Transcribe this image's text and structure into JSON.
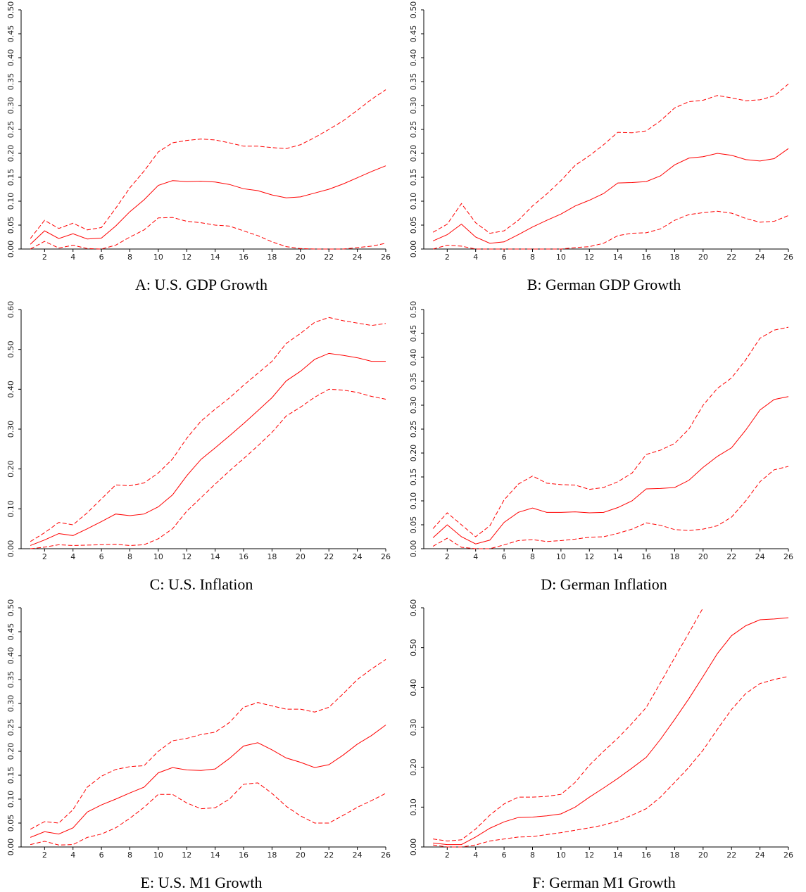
{
  "chart_data": [
    {
      "type": "line",
      "title": "A: U.S. GDP Growth",
      "x": [
        1,
        2,
        3,
        4,
        5,
        6,
        7,
        8,
        9,
        10,
        11,
        12,
        13,
        14,
        15,
        16,
        17,
        18,
        19,
        20,
        21,
        22,
        23,
        24,
        25,
        26
      ],
      "xlim": [
        0.35,
        26
      ],
      "xticks": [
        2,
        4,
        6,
        8,
        10,
        12,
        14,
        16,
        18,
        20,
        22,
        24,
        26
      ],
      "ylim": [
        0,
        0.5
      ],
      "yticks": [
        {
          "value": 0,
          "label": "0.00"
        },
        {
          "value": 0.05,
          "label": "0.05"
        },
        {
          "value": 0.1,
          "label": "0.10"
        },
        {
          "value": 0.15,
          "label": "0.15"
        },
        {
          "value": 0.2,
          "label": "0.20"
        },
        {
          "value": 0.25,
          "label": "0.25"
        },
        {
          "value": 0.3,
          "label": "0.30"
        },
        {
          "value": 0.35,
          "label": "0.35"
        },
        {
          "value": 0.4,
          "label": "0.40"
        },
        {
          "value": 0.45,
          "label": "0.45"
        },
        {
          "value": 0.5,
          "label": "0.50"
        }
      ],
      "series": [
        {
          "color": "#ff0000",
          "dashed": false,
          "values": [
            0.01,
            0.038,
            0.022,
            0.032,
            0.021,
            0.023,
            0.048,
            0.078,
            0.103,
            0.133,
            0.143,
            0.141,
            0.142,
            0.14,
            0.135,
            0.126,
            0.122,
            0.113,
            0.107,
            0.109,
            0.117,
            0.125,
            0.136,
            0.149,
            0.162,
            0.174
          ]
        },
        {
          "color": "#ff0000",
          "dashed": true,
          "values": [
            0.022,
            0.06,
            0.043,
            0.054,
            0.04,
            0.045,
            0.085,
            0.128,
            0.163,
            0.203,
            0.222,
            0.227,
            0.23,
            0.228,
            0.222,
            0.215,
            0.215,
            0.212,
            0.21,
            0.218,
            0.233,
            0.25,
            0.268,
            0.29,
            0.313,
            0.333
          ]
        },
        {
          "color": "#ff0000",
          "dashed": true,
          "values": [
            0,
            0.016,
            0.002,
            0.008,
            0.001,
            0,
            0.008,
            0.025,
            0.04,
            0.065,
            0.066,
            0.058,
            0.055,
            0.05,
            0.048,
            0.038,
            0.028,
            0.015,
            0.005,
            0.001,
            0,
            0,
            0,
            0.003,
            0.006,
            0.012
          ]
        }
      ]
    },
    {
      "type": "line",
      "title": "B: German GDP Growth",
      "x": [
        1,
        2,
        3,
        4,
        5,
        6,
        7,
        8,
        9,
        10,
        11,
        12,
        13,
        14,
        15,
        16,
        17,
        18,
        19,
        20,
        21,
        22,
        23,
        24,
        25,
        26
      ],
      "xlim": [
        0.35,
        26
      ],
      "xticks": [
        2,
        4,
        6,
        8,
        10,
        12,
        14,
        16,
        18,
        20,
        22,
        24,
        26
      ],
      "ylim": [
        0,
        0.5
      ],
      "yticks": [
        {
          "value": 0,
          "label": "0.00"
        },
        {
          "value": 0.05,
          "label": "0.05"
        },
        {
          "value": 0.1,
          "label": "0.10"
        },
        {
          "value": 0.15,
          "label": "0.15"
        },
        {
          "value": 0.2,
          "label": "0.20"
        },
        {
          "value": 0.25,
          "label": "0.25"
        },
        {
          "value": 0.3,
          "label": "0.30"
        },
        {
          "value": 0.35,
          "label": "0.35"
        },
        {
          "value": 0.4,
          "label": "0.40"
        },
        {
          "value": 0.45,
          "label": "0.45"
        },
        {
          "value": 0.5,
          "label": "0.50"
        }
      ],
      "series": [
        {
          "color": "#ff0000",
          "dashed": false,
          "values": [
            0.017,
            0.03,
            0.052,
            0.025,
            0.012,
            0.015,
            0.03,
            0.046,
            0.06,
            0.073,
            0.09,
            0.102,
            0.116,
            0.138,
            0.139,
            0.141,
            0.153,
            0.176,
            0.19,
            0.193,
            0.2,
            0.196,
            0.187,
            0.184,
            0.189,
            0.21
          ]
        },
        {
          "color": "#ff0000",
          "dashed": true,
          "values": [
            0.035,
            0.052,
            0.095,
            0.055,
            0.033,
            0.038,
            0.06,
            0.09,
            0.115,
            0.143,
            0.175,
            0.195,
            0.218,
            0.244,
            0.243,
            0.247,
            0.268,
            0.295,
            0.308,
            0.311,
            0.321,
            0.316,
            0.31,
            0.312,
            0.32,
            0.345
          ]
        },
        {
          "color": "#ff0000",
          "dashed": true,
          "values": [
            0,
            0.008,
            0.006,
            0,
            0,
            0,
            0,
            0,
            0,
            0,
            0.003,
            0.005,
            0.012,
            0.028,
            0.033,
            0.034,
            0.042,
            0.06,
            0.072,
            0.076,
            0.079,
            0.075,
            0.064,
            0.056,
            0.058,
            0.07
          ]
        }
      ]
    },
    {
      "type": "line",
      "title": "C: U.S. Inflation",
      "x": [
        1,
        2,
        3,
        4,
        5,
        6,
        7,
        8,
        9,
        10,
        11,
        12,
        13,
        14,
        15,
        16,
        17,
        18,
        19,
        20,
        21,
        22,
        23,
        24,
        25,
        26
      ],
      "xlim": [
        0.35,
        26
      ],
      "xticks": [
        2,
        4,
        6,
        8,
        10,
        12,
        14,
        16,
        18,
        20,
        22,
        24,
        26
      ],
      "ylim": [
        0,
        0.6
      ],
      "yticks": [
        {
          "value": 0,
          "label": "0.00"
        },
        {
          "value": 0.1,
          "label": "0.10"
        },
        {
          "value": 0.2,
          "label": "0.20"
        },
        {
          "value": 0.3,
          "label": "0.30"
        },
        {
          "value": 0.4,
          "label": "0.40"
        },
        {
          "value": 0.5,
          "label": "0.50"
        },
        {
          "value": 0.6,
          "label": "0.60"
        }
      ],
      "series": [
        {
          "color": "#ff0000",
          "dashed": false,
          "values": [
            0.008,
            0.022,
            0.038,
            0.033,
            0.05,
            0.068,
            0.087,
            0.083,
            0.087,
            0.105,
            0.135,
            0.183,
            0.224,
            0.253,
            0.283,
            0.314,
            0.346,
            0.379,
            0.421,
            0.445,
            0.475,
            0.49,
            0.485,
            0.479,
            0.47,
            0.47
          ]
        },
        {
          "color": "#ff0000",
          "dashed": true,
          "values": [
            0.018,
            0.04,
            0.066,
            0.06,
            0.09,
            0.125,
            0.16,
            0.158,
            0.165,
            0.19,
            0.225,
            0.277,
            0.32,
            0.35,
            0.378,
            0.41,
            0.44,
            0.47,
            0.515,
            0.54,
            0.568,
            0.58,
            0.572,
            0.566,
            0.56,
            0.565
          ]
        },
        {
          "color": "#ff0000",
          "dashed": true,
          "values": [
            0,
            0.004,
            0.01,
            0.008,
            0.009,
            0.01,
            0.011,
            0.008,
            0.01,
            0.025,
            0.05,
            0.094,
            0.128,
            0.162,
            0.195,
            0.226,
            0.258,
            0.292,
            0.333,
            0.355,
            0.38,
            0.4,
            0.398,
            0.392,
            0.382,
            0.375
          ]
        }
      ]
    },
    {
      "type": "line",
      "title": "D: German Inflation",
      "x": [
        1,
        2,
        3,
        4,
        5,
        6,
        7,
        8,
        9,
        10,
        11,
        12,
        13,
        14,
        15,
        16,
        17,
        18,
        19,
        20,
        21,
        22,
        23,
        24,
        25,
        26
      ],
      "xlim": [
        0.35,
        26
      ],
      "xticks": [
        2,
        4,
        6,
        8,
        10,
        12,
        14,
        16,
        18,
        20,
        22,
        24,
        26
      ],
      "ylim": [
        0,
        0.5
      ],
      "yticks": [
        {
          "value": 0,
          "label": "0.00"
        },
        {
          "value": 0.05,
          "label": "0.05"
        },
        {
          "value": 0.1,
          "label": "0.10"
        },
        {
          "value": 0.15,
          "label": "0.15"
        },
        {
          "value": 0.2,
          "label": "0.20"
        },
        {
          "value": 0.25,
          "label": "0.25"
        },
        {
          "value": 0.3,
          "label": "0.30"
        },
        {
          "value": 0.35,
          "label": "0.35"
        },
        {
          "value": 0.4,
          "label": "0.40"
        },
        {
          "value": 0.45,
          "label": "0.45"
        },
        {
          "value": 0.5,
          "label": "0.50"
        }
      ],
      "series": [
        {
          "color": "#ff0000",
          "dashed": false,
          "values": [
            0.023,
            0.05,
            0.025,
            0.01,
            0.018,
            0.055,
            0.076,
            0.085,
            0.076,
            0.076,
            0.077,
            0.075,
            0.076,
            0.086,
            0.1,
            0.125,
            0.126,
            0.128,
            0.143,
            0.17,
            0.193,
            0.211,
            0.248,
            0.29,
            0.312,
            0.318
          ]
        },
        {
          "color": "#ff0000",
          "dashed": true,
          "values": [
            0.042,
            0.075,
            0.05,
            0.025,
            0.048,
            0.102,
            0.135,
            0.152,
            0.137,
            0.134,
            0.133,
            0.124,
            0.128,
            0.14,
            0.158,
            0.197,
            0.206,
            0.22,
            0.25,
            0.3,
            0.335,
            0.357,
            0.395,
            0.44,
            0.457,
            0.463
          ]
        },
        {
          "color": "#ff0000",
          "dashed": true,
          "values": [
            0.005,
            0.022,
            0.003,
            0,
            0,
            0.008,
            0.017,
            0.019,
            0.015,
            0.017,
            0.02,
            0.024,
            0.025,
            0.032,
            0.041,
            0.054,
            0.049,
            0.04,
            0.038,
            0.041,
            0.048,
            0.066,
            0.1,
            0.14,
            0.165,
            0.172
          ]
        }
      ]
    },
    {
      "type": "line",
      "title": "E: U.S. M1 Growth",
      "x": [
        1,
        2,
        3,
        4,
        5,
        6,
        7,
        8,
        9,
        10,
        11,
        12,
        13,
        14,
        15,
        16,
        17,
        18,
        19,
        20,
        21,
        22,
        23,
        24,
        25,
        26
      ],
      "xlim": [
        0.35,
        26
      ],
      "xticks": [
        2,
        4,
        6,
        8,
        10,
        12,
        14,
        16,
        18,
        20,
        22,
        24,
        26
      ],
      "ylim": [
        0,
        0.5
      ],
      "yticks": [
        {
          "value": 0,
          "label": "0.00"
        },
        {
          "value": 0.05,
          "label": "0.05"
        },
        {
          "value": 0.1,
          "label": "0.10"
        },
        {
          "value": 0.15,
          "label": "0.15"
        },
        {
          "value": 0.2,
          "label": "0.20"
        },
        {
          "value": 0.25,
          "label": "0.25"
        },
        {
          "value": 0.3,
          "label": "0.30"
        },
        {
          "value": 0.35,
          "label": "0.35"
        },
        {
          "value": 0.4,
          "label": "0.40"
        },
        {
          "value": 0.45,
          "label": "0.45"
        },
        {
          "value": 0.5,
          "label": "0.50"
        }
      ],
      "series": [
        {
          "color": "#ff0000",
          "dashed": false,
          "values": [
            0.02,
            0.032,
            0.027,
            0.04,
            0.073,
            0.088,
            0.1,
            0.113,
            0.125,
            0.155,
            0.166,
            0.161,
            0.16,
            0.163,
            0.185,
            0.211,
            0.218,
            0.203,
            0.186,
            0.177,
            0.166,
            0.172,
            0.192,
            0.215,
            0.233,
            0.255
          ]
        },
        {
          "color": "#ff0000",
          "dashed": true,
          "values": [
            0.037,
            0.053,
            0.05,
            0.078,
            0.125,
            0.148,
            0.162,
            0.168,
            0.17,
            0.2,
            0.222,
            0.227,
            0.235,
            0.24,
            0.26,
            0.292,
            0.302,
            0.295,
            0.288,
            0.288,
            0.282,
            0.292,
            0.32,
            0.35,
            0.372,
            0.392
          ]
        },
        {
          "color": "#ff0000",
          "dashed": true,
          "values": [
            0.005,
            0.012,
            0.004,
            0.005,
            0.02,
            0.027,
            0.04,
            0.06,
            0.083,
            0.11,
            0.11,
            0.092,
            0.08,
            0.082,
            0.1,
            0.131,
            0.134,
            0.112,
            0.085,
            0.065,
            0.05,
            0.05,
            0.066,
            0.083,
            0.097,
            0.112
          ]
        }
      ]
    },
    {
      "type": "line",
      "title": "F: German M1 Growth",
      "x": [
        1,
        2,
        3,
        4,
        5,
        6,
        7,
        8,
        9,
        10,
        11,
        12,
        13,
        14,
        15,
        16,
        17,
        18,
        19,
        20,
        21,
        22,
        23,
        24,
        25,
        26
      ],
      "xlim": [
        0.35,
        26
      ],
      "xticks": [
        2,
        4,
        6,
        8,
        10,
        12,
        14,
        16,
        18,
        20,
        22,
        24,
        26
      ],
      "ylim": [
        0,
        0.6
      ],
      "yticks": [
        {
          "value": 0,
          "label": "0.00"
        },
        {
          "value": 0.1,
          "label": "0.10"
        },
        {
          "value": 0.2,
          "label": "0.20"
        },
        {
          "value": 0.3,
          "label": "0.30"
        },
        {
          "value": 0.4,
          "label": "0.40"
        },
        {
          "value": 0.5,
          "label": "0.50"
        },
        {
          "value": 0.6,
          "label": "0.60"
        }
      ],
      "series": [
        {
          "color": "#ff0000",
          "dashed": false,
          "values": [
            0.01,
            0.006,
            0.006,
            0.025,
            0.047,
            0.063,
            0.074,
            0.075,
            0.078,
            0.083,
            0.1,
            0.125,
            0.148,
            0.172,
            0.198,
            0.225,
            0.27,
            0.32,
            0.372,
            0.428,
            0.485,
            0.53,
            0.555,
            0.57,
            0.572,
            0.575
          ]
        },
        {
          "color": "#ff0000",
          "dashed": true,
          "values": [
            0.02,
            0.015,
            0.018,
            0.045,
            0.08,
            0.108,
            0.125,
            0.125,
            0.127,
            0.132,
            0.162,
            0.205,
            0.24,
            0.273,
            0.31,
            0.35,
            0.412,
            0.475,
            0.537,
            0.6,
            null,
            null,
            null,
            null,
            null,
            null
          ]
        },
        {
          "color": "#ff0000",
          "dashed": true,
          "values": [
            0.005,
            0,
            0,
            0.005,
            0.015,
            0.02,
            0.025,
            0.026,
            0.031,
            0.036,
            0.042,
            0.048,
            0.055,
            0.065,
            0.08,
            0.096,
            0.125,
            0.162,
            0.2,
            0.243,
            0.295,
            0.345,
            0.385,
            0.41,
            0.42,
            0.428
          ]
        }
      ]
    }
  ]
}
